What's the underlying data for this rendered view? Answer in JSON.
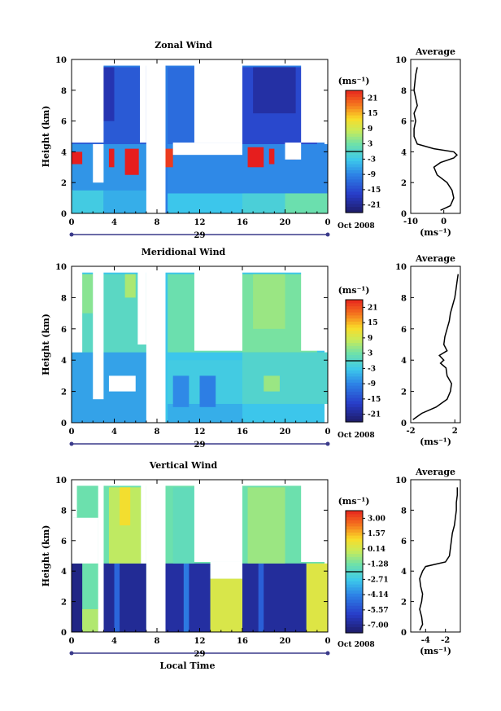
{
  "chart_data": [
    {
      "type": "heatmap",
      "title": "Zonal Wind",
      "ylabel": "Height (km)",
      "ylim": [
        0,
        10
      ],
      "xlim": [
        0,
        24
      ],
      "x_ticks": [
        "0",
        "4",
        "8",
        "12",
        "16",
        "20",
        "0"
      ],
      "y_ticks": [
        "0",
        "2",
        "4",
        "6",
        "8",
        "10"
      ],
      "date_tick": "29",
      "date_label": "Oct 2008",
      "colorbar": {
        "unit": "(ms⁻¹)",
        "ticks": [
          "21",
          "15",
          "9",
          "3",
          "-3",
          "-9",
          "-15",
          "-21"
        ],
        "range": [
          -24,
          24
        ]
      },
      "average_panel": {
        "title": "Average",
        "xlabel": "(ms⁻¹)",
        "xlim": [
          -10,
          5
        ],
        "x_ticks": [
          "-10",
          "0"
        ],
        "y_ticks": [
          "0",
          "2",
          "4",
          "6",
          "8",
          "10"
        ],
        "profile_height": [
          0.2,
          0.5,
          1.0,
          1.5,
          2.0,
          2.5,
          3.0,
          3.3,
          3.6,
          3.8,
          4.0,
          4.2,
          4.5,
          5.0,
          5.5,
          6.0,
          6.5,
          7.0,
          8.0,
          9.0,
          9.5
        ],
        "profile_value": [
          -1,
          2,
          3,
          2.5,
          1,
          -2,
          -3,
          -1,
          3,
          4,
          3,
          -3,
          -8,
          -9,
          -9,
          -8.5,
          -9,
          -8,
          -9,
          -8.5,
          -8
        ]
      },
      "fields": {
        "background_value": -10,
        "blocks": [
          {
            "t0": 0,
            "t1": 3,
            "h0": 0,
            "h1": 1.5,
            "v": -3
          },
          {
            "t0": 3,
            "t1": 7,
            "h0": 0,
            "h1": 1.5,
            "v": -6
          },
          {
            "t0": 9,
            "t1": 16,
            "h0": 0,
            "h1": 1.3,
            "v": -4
          },
          {
            "t0": 16,
            "t1": 21,
            "h0": 0,
            "h1": 1.5,
            "v": -2
          },
          {
            "t0": 20,
            "t1": 24,
            "h0": 0,
            "h1": 2.5,
            "v": 2
          },
          {
            "t0": 0,
            "t1": 7,
            "h0": 1.5,
            "h1": 4.5,
            "v": -8
          },
          {
            "t0": 9,
            "t1": 24,
            "h0": 1.3,
            "h1": 4.5,
            "v": -9
          },
          {
            "t0": 0,
            "t1": 7,
            "h0": 4.5,
            "h1": 9.5,
            "v": -14
          },
          {
            "t0": 9,
            "t1": 16,
            "h0": 4.5,
            "h1": 9.5,
            "v": -12
          },
          {
            "t0": 16,
            "t1": 23,
            "h0": 4.5,
            "h1": 9.5,
            "v": -16
          },
          {
            "t0": 2,
            "t1": 4,
            "h0": 6,
            "h1": 9.5,
            "v": -19
          },
          {
            "t0": 17,
            "t1": 21,
            "h0": 6.5,
            "h1": 9.5,
            "v": -20
          },
          {
            "t0": 0,
            "t1": 1,
            "h0": 3.2,
            "h1": 4,
            "v": 24
          },
          {
            "t0": 3.5,
            "t1": 4,
            "h0": 3,
            "h1": 4.2,
            "v": 24
          },
          {
            "t0": 5,
            "t1": 6.3,
            "h0": 2.5,
            "h1": 4.2,
            "v": 24
          },
          {
            "t0": 8.5,
            "t1": 9.5,
            "h0": 3,
            "h1": 4.2,
            "v": 22
          },
          {
            "t0": 16.5,
            "t1": 18,
            "h0": 3,
            "h1": 4.3,
            "v": 24
          },
          {
            "t0": 18.5,
            "t1": 19,
            "h0": 3.2,
            "h1": 4.2,
            "v": 24
          },
          {
            "t0": 20.5,
            "t1": 21,
            "h0": 3.5,
            "h1": 3.9,
            "v": 24
          }
        ],
        "gaps": [
          {
            "t0": 7,
            "t1": 8.8,
            "h0": 0,
            "h1": 10
          },
          {
            "t0": 0,
            "t1": 3,
            "h0": 4.6,
            "h1": 10
          },
          {
            "t0": 6.4,
            "t1": 7,
            "h0": 4.6,
            "h1": 10
          },
          {
            "t0": 11.5,
            "t1": 16,
            "h0": 4.6,
            "h1": 10
          },
          {
            "t0": 21.5,
            "t1": 24,
            "h0": 4.6,
            "h1": 10
          },
          {
            "t0": 2,
            "t1": 3,
            "h0": 2,
            "h1": 4.5
          },
          {
            "t0": 9.5,
            "t1": 16,
            "h0": 3.8,
            "h1": 4.6
          },
          {
            "t0": 20,
            "t1": 21.5,
            "h0": 3.5,
            "h1": 4.6
          }
        ]
      }
    },
    {
      "type": "heatmap",
      "title": "Meridional Wind",
      "ylabel": "Height (km)",
      "ylim": [
        0,
        10
      ],
      "xlim": [
        0,
        24
      ],
      "x_ticks": [
        "0",
        "4",
        "8",
        "12",
        "16",
        "20",
        "0"
      ],
      "y_ticks": [
        "0",
        "2",
        "4",
        "6",
        "8",
        "10"
      ],
      "date_tick": "29",
      "date_label": "Oct 2008",
      "colorbar": {
        "unit": "(ms⁻¹)",
        "ticks": [
          "21",
          "15",
          "9",
          "3",
          "-3",
          "-9",
          "-15",
          "-21"
        ],
        "range": [
          -24,
          24
        ]
      },
      "average_panel": {
        "title": "Average",
        "xlabel": "(ms⁻¹)",
        "xlim": [
          -2,
          2.5
        ],
        "x_ticks": [
          "-2",
          "2"
        ],
        "y_ticks": [
          "0",
          "2",
          "4",
          "6",
          "8",
          "10"
        ],
        "profile_height": [
          0.2,
          0.6,
          1.0,
          1.5,
          2.0,
          2.5,
          3.0,
          3.5,
          3.8,
          4.0,
          4.3,
          4.6,
          5.0,
          5.5,
          6.0,
          6.5,
          7.0,
          7.5,
          8.0,
          8.5,
          9.0,
          9.5
        ],
        "profile_value": [
          -1.8,
          -1,
          0.3,
          1.3,
          1.6,
          1.7,
          1.3,
          1.2,
          0.7,
          1.0,
          0.6,
          1.3,
          1.0,
          1.1,
          1.3,
          1.5,
          1.6,
          1.8,
          2.0,
          2.1,
          2.2,
          2.3
        ]
      },
      "fields": {
        "background_value": -4,
        "blocks": [
          {
            "t0": 0,
            "t1": 7,
            "h0": 0,
            "h1": 4.5,
            "v": -7
          },
          {
            "t0": 9,
            "t1": 16,
            "h0": 0,
            "h1": 1.2,
            "v": -6
          },
          {
            "t0": 9,
            "t1": 16,
            "h0": 1.2,
            "h1": 4,
            "v": -3
          },
          {
            "t0": 16,
            "t1": 24,
            "h0": 1.2,
            "h1": 4.5,
            "v": -1
          },
          {
            "t0": 0,
            "t1": 7,
            "h0": 4.5,
            "h1": 9.5,
            "v": 0
          },
          {
            "t0": 9,
            "t1": 16,
            "h0": 4.5,
            "h1": 9.5,
            "v": 2
          },
          {
            "t0": 16,
            "t1": 23,
            "h0": 4.5,
            "h1": 9.5,
            "v": 3
          },
          {
            "t0": 17,
            "t1": 20,
            "h0": 6,
            "h1": 9.5,
            "v": 5
          },
          {
            "t0": 1,
            "t1": 2,
            "h0": 7,
            "h1": 9.5,
            "v": 4
          },
          {
            "t0": 5,
            "t1": 6,
            "h0": 8,
            "h1": 9.5,
            "v": 6
          },
          {
            "t0": 9.5,
            "t1": 11,
            "h0": 1,
            "h1": 3,
            "v": -9
          },
          {
            "t0": 12,
            "t1": 13.5,
            "h0": 1,
            "h1": 3,
            "v": -10
          },
          {
            "t0": 18,
            "t1": 19.5,
            "h0": 2,
            "h1": 3,
            "v": 5
          }
        ],
        "gaps": [
          {
            "t0": 7,
            "t1": 8.8,
            "h0": 0,
            "h1": 10
          },
          {
            "t0": 0,
            "t1": 1,
            "h0": 4.5,
            "h1": 10
          },
          {
            "t0": 2,
            "t1": 3,
            "h0": 1.5,
            "h1": 10
          },
          {
            "t0": 6.2,
            "t1": 7,
            "h0": 5,
            "h1": 10
          },
          {
            "t0": 11.5,
            "t1": 16,
            "h0": 4.6,
            "h1": 10
          },
          {
            "t0": 21.5,
            "t1": 24,
            "h0": 4.6,
            "h1": 10
          },
          {
            "t0": 3.5,
            "t1": 6,
            "h0": 2,
            "h1": 3
          }
        ]
      }
    },
    {
      "type": "heatmap",
      "title": "Vertical Wind",
      "ylabel": "Height (km)",
      "xlabel": "Local Time",
      "ylim": [
        0,
        10
      ],
      "xlim": [
        0,
        24
      ],
      "x_ticks": [
        "0",
        "4",
        "8",
        "12",
        "16",
        "20",
        "0"
      ],
      "y_ticks": [
        "0",
        "2",
        "4",
        "6",
        "8",
        "10"
      ],
      "date_tick": "29",
      "date_label": "Oct 2008",
      "colorbar": {
        "unit": "(ms⁻¹)",
        "ticks": [
          "3.00",
          "1.57",
          "0.14",
          "-1.28",
          "-2.71",
          "-4.14",
          "-5.57",
          "-7.00"
        ],
        "range": [
          -7.7,
          3.7
        ]
      },
      "average_panel": {
        "title": "Average",
        "xlabel": "(ms⁻¹)",
        "xlim": [
          -5.5,
          -0.5
        ],
        "x_ticks": [
          "-4",
          "-2"
        ],
        "y_ticks": [
          "0",
          "2",
          "4",
          "6",
          "8",
          "10"
        ],
        "profile_height": [
          0.1,
          0.5,
          1.0,
          1.5,
          2.0,
          2.5,
          3.0,
          3.5,
          4.0,
          4.3,
          4.6,
          5.0,
          5.5,
          6.0,
          6.5,
          7.0,
          7.5,
          8.0,
          8.5,
          9.0,
          9.5
        ],
        "profile_value": [
          -4.6,
          -4.3,
          -4.4,
          -4.6,
          -4.4,
          -4.3,
          -4.5,
          -4.6,
          -4.3,
          -4.0,
          -2.0,
          -1.6,
          -1.5,
          -1.4,
          -1.3,
          -1.1,
          -1.0,
          -0.9,
          -0.9,
          -0.8,
          -0.8
        ]
      },
      "fields": {
        "background_value": -1.5,
        "blocks": [
          {
            "t0": 0,
            "t1": 1,
            "h0": 0,
            "h1": 4.5,
            "v": -7.3
          },
          {
            "t0": 1,
            "t1": 2.5,
            "h0": 0,
            "h1": 1.5,
            "v": -0.5
          },
          {
            "t0": 3,
            "t1": 7,
            "h0": 0,
            "h1": 4.5,
            "v": -7.0
          },
          {
            "t0": 4,
            "t1": 4.5,
            "h0": 0,
            "h1": 4.5,
            "v": -5.0
          },
          {
            "t0": 8.8,
            "t1": 13,
            "h0": 0,
            "h1": 4.5,
            "v": -6.8
          },
          {
            "t0": 10.5,
            "t1": 11,
            "h0": 0,
            "h1": 4.5,
            "v": -4.5
          },
          {
            "t0": 13,
            "t1": 16,
            "h0": 0,
            "h1": 3.5,
            "v": 0.2
          },
          {
            "t0": 16,
            "t1": 22,
            "h0": 0,
            "h1": 4.5,
            "v": -6.9
          },
          {
            "t0": 17.5,
            "t1": 18,
            "h0": 0,
            "h1": 4.5,
            "v": -5.2
          },
          {
            "t0": 22,
            "t1": 24,
            "h0": 0,
            "h1": 4.5,
            "v": 0.3
          },
          {
            "t0": 3.5,
            "t1": 6.5,
            "h0": 4.5,
            "h1": 9.5,
            "v": -0.3
          },
          {
            "t0": 4.5,
            "t1": 5.5,
            "h0": 7,
            "h1": 9.5,
            "v": 0.8
          },
          {
            "t0": 16.5,
            "t1": 20,
            "h0": 4.5,
            "h1": 9.5,
            "v": -0.8
          },
          {
            "t0": 9.5,
            "t1": 11.5,
            "h0": 4.5,
            "h1": 9.5,
            "v": -1.8
          }
        ],
        "gaps": [
          {
            "t0": 7,
            "t1": 8.8,
            "h0": 0,
            "h1": 10
          },
          {
            "t0": 2.5,
            "t1": 3,
            "h0": 0,
            "h1": 10
          },
          {
            "t0": 0,
            "t1": 2.5,
            "h0": 4.5,
            "h1": 7.5
          },
          {
            "t0": 0,
            "t1": 0.5,
            "h0": 7.5,
            "h1": 10
          },
          {
            "t0": 6.5,
            "t1": 7,
            "h0": 4.5,
            "h1": 10
          },
          {
            "t0": 11.5,
            "t1": 16,
            "h0": 4.6,
            "h1": 10
          },
          {
            "t0": 13,
            "t1": 16,
            "h0": 3.5,
            "h1": 4.6
          },
          {
            "t0": 21.5,
            "t1": 24,
            "h0": 4.6,
            "h1": 10
          },
          {
            "t0": 2.5,
            "t1": 3,
            "h0": 0,
            "h1": 10
          }
        ]
      }
    }
  ]
}
